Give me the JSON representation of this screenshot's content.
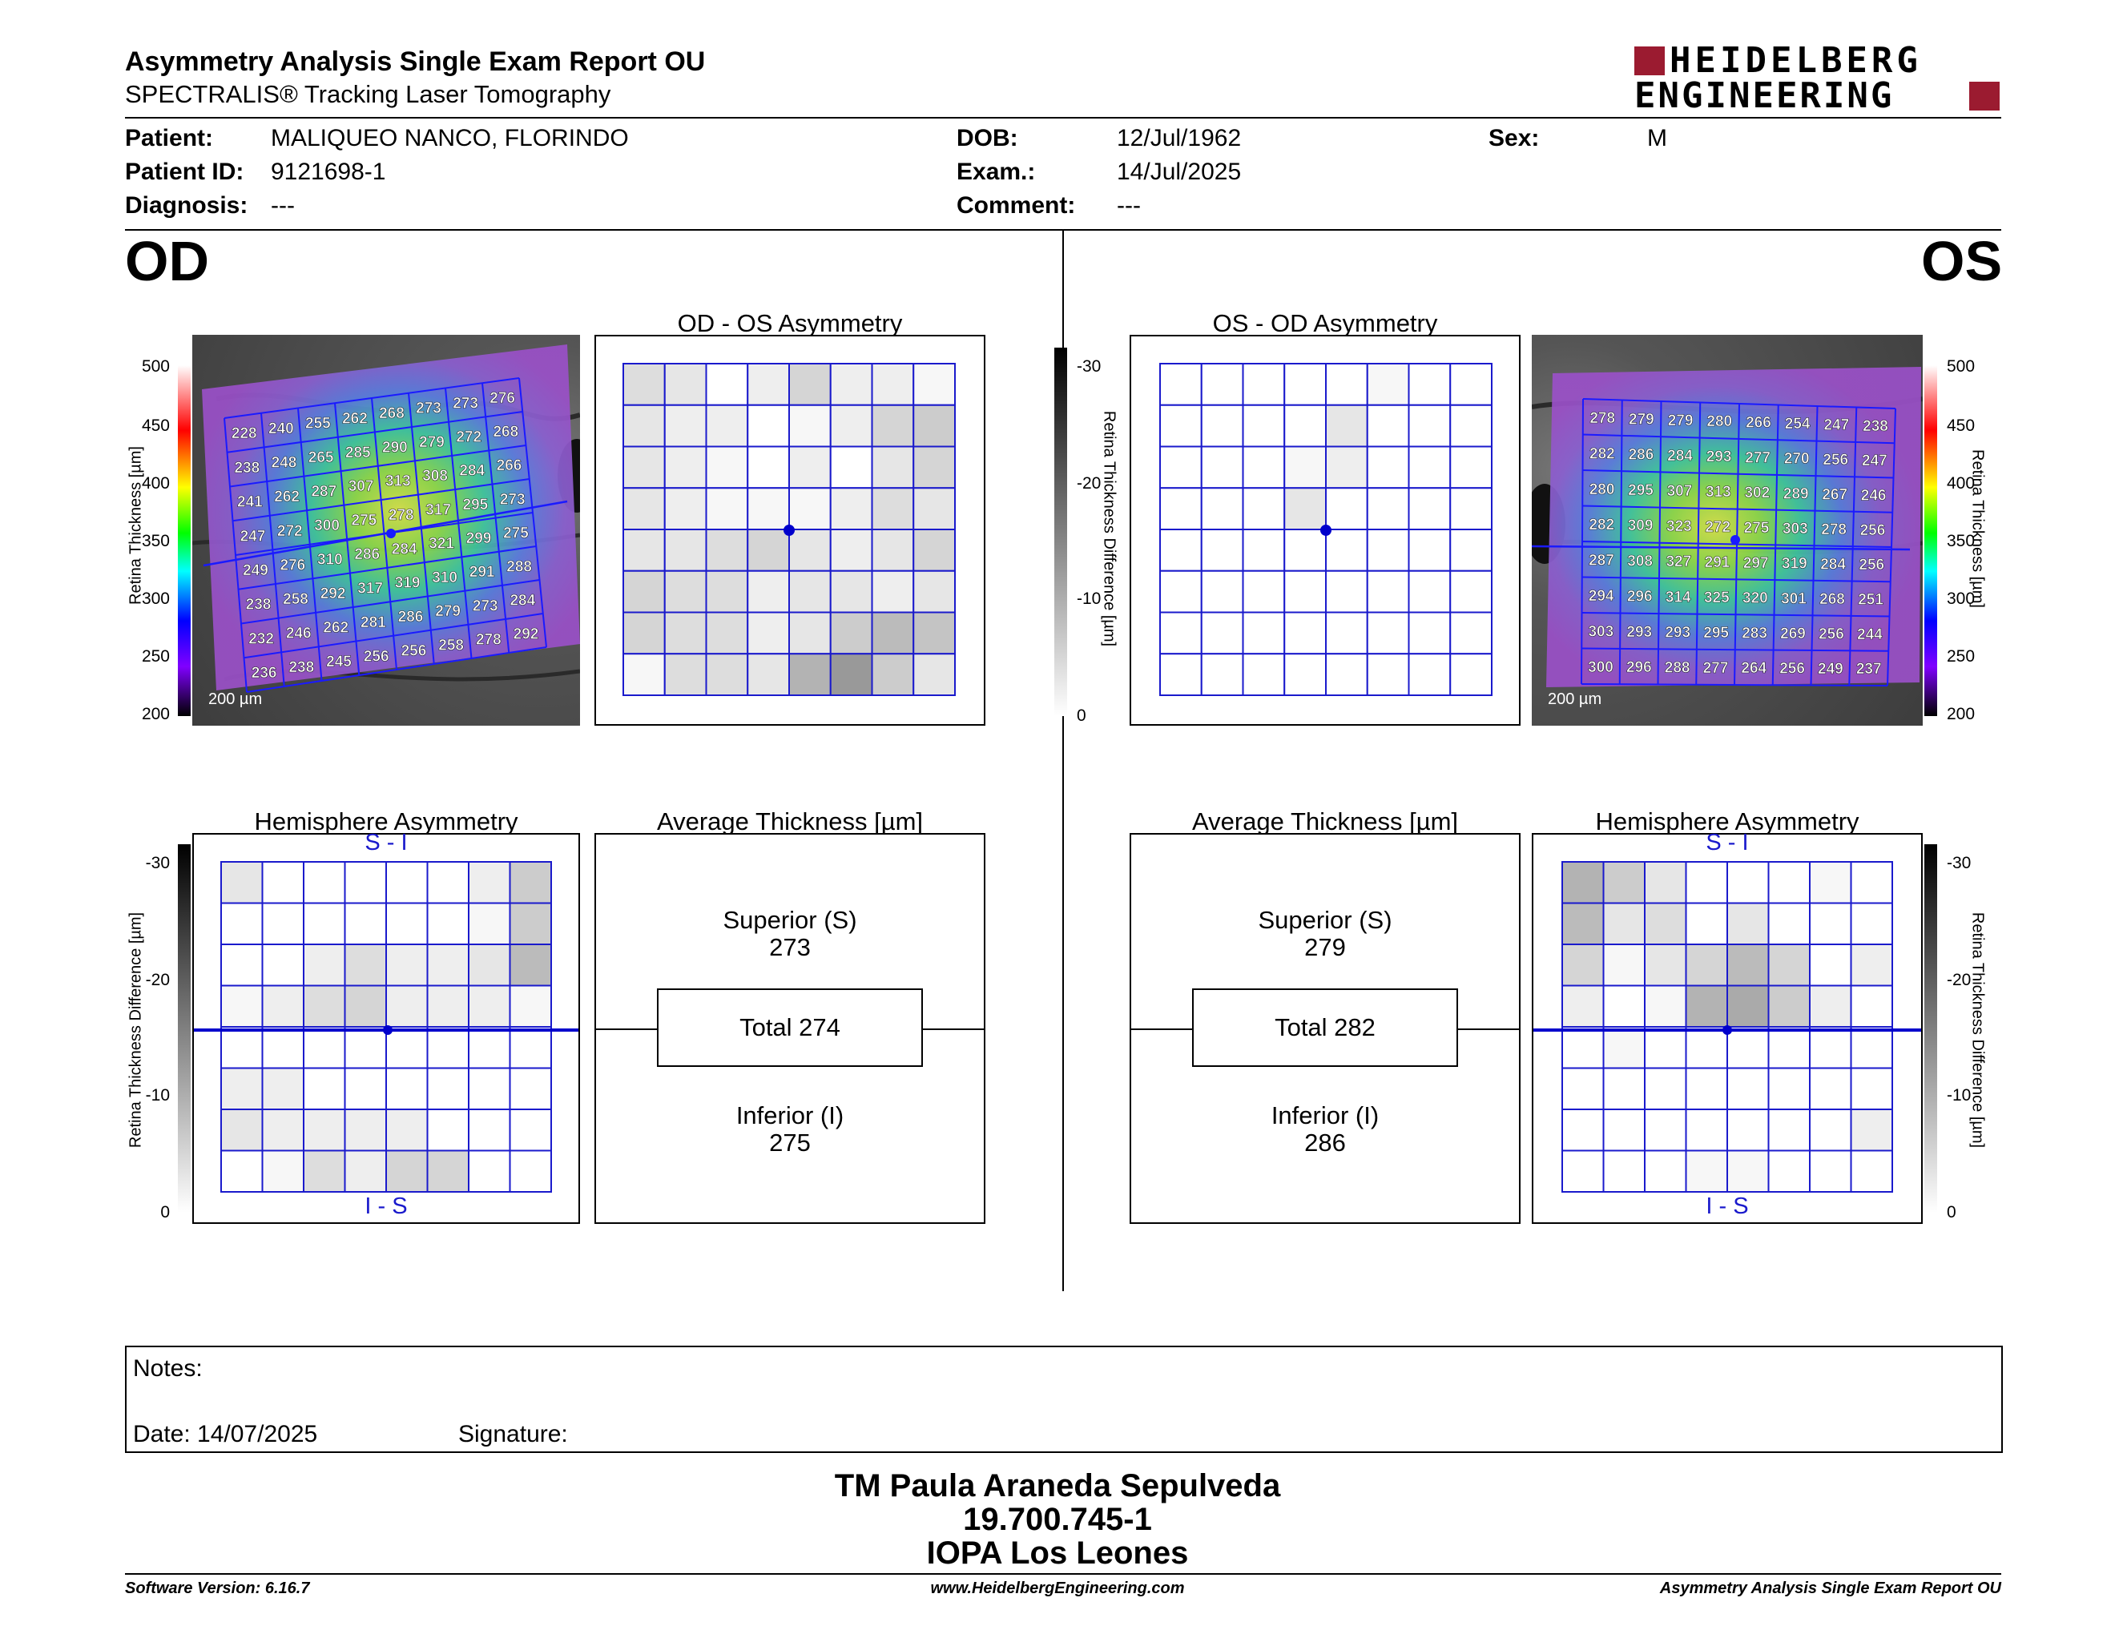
{
  "header": {
    "title": "Asymmetry Analysis Single Exam Report OU",
    "subtitle": "SPECTRALIS® Tracking Laser Tomography",
    "logo_top": "HEIDELBERG",
    "logo_bottom": "ENGINEERING",
    "brand_color": "#9b1b30"
  },
  "patient": {
    "patient_label": "Patient:",
    "patient_value": "MALIQUEO NANCO, FLORINDO",
    "id_label": "Patient ID:",
    "id_value": "9121698-1",
    "diagnosis_label": "Diagnosis:",
    "diagnosis_value": "---",
    "dob_label": "DOB:",
    "dob_value": "12/Jul/1962",
    "exam_label": "Exam.:",
    "exam_value": "14/Jul/2025",
    "comment_label": "Comment:",
    "comment_value": "---",
    "sex_label": "Sex:",
    "sex_value": "M"
  },
  "od": {
    "eye": "OD",
    "thickness_grid": [
      [
        228,
        240,
        255,
        262,
        268,
        273,
        273,
        276
      ],
      [
        238,
        248,
        265,
        285,
        290,
        279,
        272,
        268
      ],
      [
        241,
        262,
        287,
        307,
        313,
        308,
        284,
        266
      ],
      [
        247,
        272,
        300,
        275,
        278,
        317,
        295,
        273
      ],
      [
        249,
        276,
        310,
        286,
        284,
        321,
        299,
        275
      ],
      [
        238,
        258,
        292,
        317,
        319,
        310,
        291,
        288
      ],
      [
        232,
        246,
        262,
        281,
        286,
        279,
        273,
        284
      ],
      [
        236,
        238,
        245,
        256,
        256,
        258,
        278,
        292
      ]
    ],
    "scale_bar": "200 µm",
    "asym_title": "OD - OS Asymmetry",
    "asym_grid": [
      [
        4,
        3,
        0,
        2,
        5,
        2,
        2,
        1
      ],
      [
        3,
        2,
        2,
        0,
        1,
        2,
        5,
        6
      ],
      [
        3,
        2,
        1,
        0,
        2,
        0,
        3,
        5
      ],
      [
        3,
        2,
        1,
        1,
        1,
        2,
        4,
        3
      ],
      [
        3,
        3,
        4,
        5,
        3,
        2,
        3,
        5
      ],
      [
        5,
        4,
        4,
        2,
        3,
        3,
        2,
        3
      ],
      [
        5,
        4,
        4,
        2,
        3,
        6,
        8,
        7
      ],
      [
        1,
        4,
        4,
        3,
        9,
        12,
        6,
        3
      ]
    ],
    "hemi_title": "Hemisphere Asymmetry",
    "hemi_top_label": "S - I",
    "hemi_bottom_label": "I - S",
    "hemi_grid": [
      [
        3,
        0,
        0,
        0,
        0,
        0,
        2,
        6
      ],
      [
        0,
        0,
        0,
        0,
        0,
        0,
        1,
        6
      ],
      [
        0,
        0,
        2,
        4,
        2,
        2,
        3,
        8
      ],
      [
        1,
        2,
        4,
        5,
        2,
        2,
        2,
        1
      ],
      [
        0,
        0,
        0,
        0,
        0,
        0,
        0,
        0
      ],
      [
        2,
        2,
        0,
        0,
        0,
        0,
        0,
        0
      ],
      [
        3,
        2,
        2,
        2,
        2,
        0,
        0,
        0
      ],
      [
        0,
        1,
        4,
        2,
        5,
        5,
        0,
        0
      ]
    ],
    "avg_title": "Average Thickness [µm]",
    "superior_label": "Superior (S)",
    "superior_value": "273",
    "total_label": "Total 274",
    "inferior_label": "Inferior (I)",
    "inferior_value": "275"
  },
  "os": {
    "eye": "OS",
    "thickness_grid": [
      [
        278,
        279,
        279,
        280,
        266,
        254,
        247,
        238
      ],
      [
        282,
        286,
        284,
        293,
        277,
        270,
        256,
        247
      ],
      [
        280,
        295,
        307,
        313,
        302,
        289,
        267,
        246
      ],
      [
        282,
        309,
        323,
        272,
        275,
        303,
        278,
        256
      ],
      [
        287,
        308,
        327,
        291,
        297,
        319,
        284,
        256
      ],
      [
        294,
        296,
        314,
        325,
        320,
        301,
        268,
        251
      ],
      [
        303,
        293,
        293,
        295,
        283,
        269,
        256,
        244
      ],
      [
        300,
        296,
        288,
        277,
        264,
        256,
        249,
        237
      ]
    ],
    "scale_bar": "200 µm",
    "asym_title": "OS - OD Asymmetry",
    "asym_grid": [
      [
        0,
        0,
        0,
        0,
        0,
        1,
        0,
        0
      ],
      [
        0,
        0,
        0,
        0,
        3,
        0,
        0,
        0
      ],
      [
        0,
        0,
        0,
        1,
        2,
        0,
        0,
        0
      ],
      [
        0,
        0,
        0,
        3,
        0,
        0,
        0,
        0
      ],
      [
        0,
        0,
        0,
        0,
        0,
        0,
        0,
        0
      ],
      [
        0,
        0,
        0,
        0,
        0,
        0,
        0,
        0
      ],
      [
        0,
        0,
        0,
        0,
        0,
        0,
        0,
        0
      ],
      [
        0,
        0,
        0,
        0,
        0,
        0,
        0,
        0
      ]
    ],
    "hemi_title": "Hemisphere Asymmetry",
    "hemi_top_label": "S - I",
    "hemi_bottom_label": "I - S",
    "hemi_grid": [
      [
        9,
        6,
        3,
        0,
        0,
        0,
        1,
        0
      ],
      [
        8,
        3,
        4,
        0,
        3,
        0,
        0,
        0
      ],
      [
        5,
        1,
        3,
        5,
        8,
        5,
        0,
        2
      ],
      [
        2,
        0,
        1,
        9,
        10,
        6,
        2,
        0
      ],
      [
        0,
        1,
        0,
        0,
        0,
        0,
        0,
        0
      ],
      [
        0,
        0,
        0,
        0,
        0,
        0,
        0,
        0
      ],
      [
        0,
        0,
        0,
        0,
        0,
        0,
        0,
        2
      ],
      [
        0,
        0,
        0,
        1,
        1,
        0,
        0,
        0
      ]
    ],
    "avg_title": "Average Thickness [µm]",
    "superior_label": "Superior (S)",
    "superior_value": "279",
    "total_label": "Total 282",
    "inferior_label": "Inferior (I)",
    "inferior_value": "286"
  },
  "thickness_scale": {
    "label": "Retina Thickness [µm]",
    "ticks": [
      "500",
      "450",
      "400",
      "350",
      "300",
      "250",
      "200"
    ]
  },
  "difference_scale": {
    "label": "Retina Thickness Difference [µm]",
    "ticks": [
      "-30",
      "-20",
      "-10",
      "0"
    ]
  },
  "notes": {
    "notes_label": "Notes:",
    "date_label": "Date: 14/07/2025",
    "signature_label": "Signature:"
  },
  "footer_block": {
    "line1": "TM Paula Araneda Sepulveda",
    "line2": "19.700.745-1",
    "line3": "IOPA Los Leones"
  },
  "footer": {
    "software": "Software Version: 6.16.7",
    "url": "www.HeidelbergEngineering.com",
    "report": "Asymmetry Analysis Single Exam Report OU"
  }
}
